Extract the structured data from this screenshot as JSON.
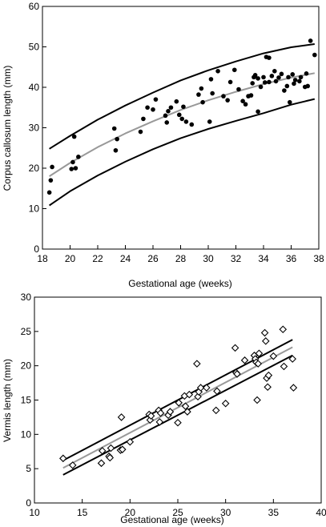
{
  "chart_data": [
    {
      "type": "scatter",
      "xlabel": "Gestational age (weeks)",
      "ylabel": "Corpus callosum length (mm)",
      "xlim": [
        18,
        38
      ],
      "ylim": [
        0,
        60
      ],
      "x_ticks": [
        "18",
        "20",
        "22",
        "24",
        "26",
        "28",
        "30",
        "32",
        "34",
        "36",
        "38"
      ],
      "y_ticks": [
        "0",
        "10",
        "20",
        "30",
        "40",
        "50",
        "60"
      ],
      "grid": false,
      "marker": "filled-circle",
      "points": [
        [
          18.5,
          14
        ],
        [
          18.6,
          17
        ],
        [
          18.7,
          20.3
        ],
        [
          20.1,
          19.8
        ],
        [
          20.2,
          21.5
        ],
        [
          20.3,
          27.8
        ],
        [
          20.4,
          20
        ],
        [
          20.6,
          22.8
        ],
        [
          23.2,
          29.8
        ],
        [
          23.3,
          24.4
        ],
        [
          23.4,
          27.2
        ],
        [
          25.1,
          29
        ],
        [
          25.3,
          32.2
        ],
        [
          25.6,
          35
        ],
        [
          26.0,
          34.5
        ],
        [
          26.2,
          37
        ],
        [
          26.9,
          33
        ],
        [
          27.0,
          31.3
        ],
        [
          27.1,
          34.1
        ],
        [
          27.3,
          35
        ],
        [
          27.7,
          36.5
        ],
        [
          27.9,
          33.2
        ],
        [
          28.1,
          32.2
        ],
        [
          28.2,
          35.2
        ],
        [
          28.4,
          31.5
        ],
        [
          28.8,
          30.8
        ],
        [
          29.3,
          38.2
        ],
        [
          29.5,
          39.7
        ],
        [
          29.6,
          36.3
        ],
        [
          30.1,
          31.5
        ],
        [
          30.2,
          42
        ],
        [
          30.3,
          38.5
        ],
        [
          30.7,
          44
        ],
        [
          31.1,
          37.8
        ],
        [
          31.4,
          36.8
        ],
        [
          31.6,
          41.3
        ],
        [
          31.9,
          44.3
        ],
        [
          32.2,
          39.5
        ],
        [
          32.5,
          36.6
        ],
        [
          32.7,
          35.8
        ],
        [
          32.9,
          37.8
        ],
        [
          33.1,
          38
        ],
        [
          33.2,
          41
        ],
        [
          33.3,
          42.5
        ],
        [
          33.4,
          43
        ],
        [
          33.6,
          42.2
        ],
        [
          33.6,
          34
        ],
        [
          33.8,
          40.1
        ],
        [
          34.0,
          42.5
        ],
        [
          34.1,
          41.2
        ],
        [
          34.2,
          47.5
        ],
        [
          34.4,
          47.3
        ],
        [
          34.4,
          41.3
        ],
        [
          34.6,
          42.8
        ],
        [
          34.8,
          44
        ],
        [
          34.9,
          41.5
        ],
        [
          35.1,
          42.4
        ],
        [
          35.3,
          43.3
        ],
        [
          35.5,
          39.2
        ],
        [
          35.7,
          40.3
        ],
        [
          35.8,
          42.5
        ],
        [
          35.9,
          36.3
        ],
        [
          36.1,
          43.2
        ],
        [
          36.2,
          40.9
        ],
        [
          36.3,
          41.8
        ],
        [
          36.6,
          41.5
        ],
        [
          36.7,
          42.5
        ],
        [
          37.0,
          40.1
        ],
        [
          37.1,
          43.4
        ],
        [
          37.2,
          40.3
        ],
        [
          37.4,
          51.5
        ],
        [
          37.7,
          48
        ]
      ],
      "curves": [
        {
          "role": "mean",
          "color": "#999999",
          "x": [
            18.5,
            20,
            22,
            24,
            26,
            28,
            30,
            32,
            34,
            36,
            37.7
          ],
          "y": [
            18,
            21.3,
            25.2,
            28.6,
            31.6,
            34.4,
            36.8,
            38.9,
            40.8,
            42.4,
            43.5
          ]
        },
        {
          "role": "upper",
          "color": "#000000",
          "x": [
            18.5,
            20,
            22,
            24,
            26,
            28,
            30,
            32,
            34,
            36,
            37.7
          ],
          "y": [
            24.8,
            28,
            32,
            35.5,
            38.7,
            41.7,
            44.2,
            46.4,
            48.4,
            49.9,
            50.7
          ]
        },
        {
          "role": "lower",
          "color": "#000000",
          "x": [
            18.5,
            20,
            22,
            24,
            26,
            28,
            30,
            32,
            34,
            36,
            37.7
          ],
          "y": [
            10.8,
            14.3,
            18.2,
            21.6,
            24.7,
            27.4,
            29.7,
            31.7,
            33.6,
            35.7,
            37.1
          ]
        }
      ]
    },
    {
      "type": "scatter",
      "xlabel": "Gestational age (weeks)",
      "ylabel": "Vermis length (mm)",
      "xlim": [
        10,
        40
      ],
      "ylim": [
        0,
        30
      ],
      "x_ticks": [
        "10",
        "15",
        "20",
        "25",
        "30",
        "35",
        "40"
      ],
      "y_ticks": [
        "0",
        "5",
        "10",
        "15",
        "20",
        "25",
        "30"
      ],
      "grid": false,
      "marker": "open-diamond",
      "points": [
        [
          13.0,
          6.5
        ],
        [
          14.0,
          5.5
        ],
        [
          17.0,
          5.8
        ],
        [
          17.1,
          7.6
        ],
        [
          17.8,
          6.8
        ],
        [
          17.9,
          6.6
        ],
        [
          18.0,
          8
        ],
        [
          19.0,
          7.7
        ],
        [
          19.1,
          12.5
        ],
        [
          19.2,
          7.8
        ],
        [
          20.0,
          8.9
        ],
        [
          22.0,
          12.9
        ],
        [
          22.1,
          12.1
        ],
        [
          22.2,
          12.7
        ],
        [
          23.0,
          13.5
        ],
        [
          23.1,
          11.8
        ],
        [
          23.2,
          13.1
        ],
        [
          24.0,
          12.8
        ],
        [
          24.2,
          13.3
        ],
        [
          25.0,
          11.7
        ],
        [
          25.1,
          14.6
        ],
        [
          25.7,
          15.6
        ],
        [
          25.8,
          14.1
        ],
        [
          26.0,
          13.3
        ],
        [
          26.2,
          15.8
        ],
        [
          27.0,
          20.3
        ],
        [
          27.1,
          15.5
        ],
        [
          27.2,
          16.2
        ],
        [
          27.4,
          16.8
        ],
        [
          28.0,
          16.8
        ],
        [
          29.0,
          13.5
        ],
        [
          29.1,
          16.3
        ],
        [
          30.0,
          14.5
        ],
        [
          31.0,
          22.6
        ],
        [
          31.1,
          19.0
        ],
        [
          31.2,
          18.8
        ],
        [
          32.0,
          20.8
        ],
        [
          33.0,
          21.5
        ],
        [
          33.1,
          21.0
        ],
        [
          33.2,
          20.5
        ],
        [
          33.3,
          15
        ],
        [
          33.4,
          20.3
        ],
        [
          33.5,
          21.8
        ],
        [
          34.1,
          24.8
        ],
        [
          34.2,
          23.6
        ],
        [
          34.3,
          18.2
        ],
        [
          34.4,
          16.9
        ],
        [
          34.5,
          18.6
        ],
        [
          35.0,
          21.4
        ],
        [
          36.0,
          25.3
        ],
        [
          36.1,
          19.9
        ],
        [
          37.0,
          21
        ],
        [
          37.1,
          16.8
        ]
      ],
      "curves": [
        {
          "role": "mean",
          "color": "#999999",
          "x": [
            13,
            37
          ],
          "y": [
            5.1,
            22.7
          ]
        },
        {
          "role": "upper",
          "color": "#000000",
          "x": [
            13,
            37
          ],
          "y": [
            6.2,
            23.8
          ]
        },
        {
          "role": "lower",
          "color": "#000000",
          "x": [
            13,
            37
          ],
          "y": [
            4.1,
            21.5
          ]
        }
      ]
    }
  ]
}
